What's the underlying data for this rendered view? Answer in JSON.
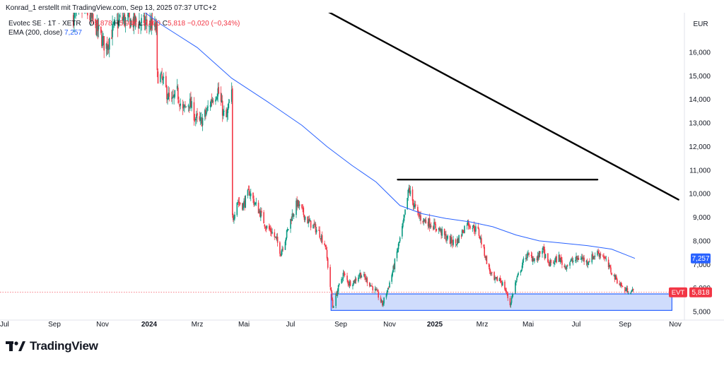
{
  "header": {
    "credit": "Konrad_1 erstellt mit TradingView.com, Sep 13, 2025 07:37 UTC+2",
    "symbol": "Evotec SE · 1T · XETR",
    "ohlc": {
      "o_label": "O",
      "o": "5,878",
      "h_label": "H",
      "h": "5,946",
      "l_label": "L",
      "l": "5,800",
      "c_label": "C",
      "c": "5,818",
      "change": "−0,020 (−0,34%)"
    },
    "indicator_name": "EMA (200, close)",
    "indicator_value": "7,257"
  },
  "currency": "EUR",
  "branding": "TradingView",
  "colors": {
    "up": "#089981",
    "down": "#f23645",
    "ema": "#2962ff",
    "zone_fill": "#c7d6fb",
    "zone_stroke": "#2962ff",
    "trendline": "#000000"
  },
  "chart_data": {
    "type": "candlestick",
    "symbol": "EVT",
    "interval": "1T",
    "x_axis_ticks": [
      "Jul",
      "Sep",
      "Nov",
      "2024",
      "Mrz",
      "Mai",
      "Jul",
      "Sep",
      "Nov",
      "2025",
      "Mrz",
      "Mai",
      "Jul",
      "Sep",
      "Nov"
    ],
    "y_axis_ticks": [
      "5,000",
      "6,000",
      "7,000",
      "8,000",
      "9,000",
      "10,000",
      "11,000",
      "12,000",
      "13,000",
      "14,000",
      "15,000",
      "16,000"
    ],
    "ylim": [
      4.6,
      17.2
    ],
    "last_price": {
      "symbol": "EVT",
      "value": 5.818,
      "label": "5,818"
    },
    "ema": {
      "name": "EMA (200, close)",
      "last_label": "7,257",
      "points": [
        [
          "2023-10-15",
          19.5
        ],
        [
          "2023-12-01",
          18.3
        ],
        [
          "2024-01-15",
          17.2
        ],
        [
          "2024-03-01",
          16.2
        ],
        [
          "2024-04-15",
          14.9
        ],
        [
          "2024-06-01",
          13.9
        ],
        [
          "2024-07-15",
          12.9
        ],
        [
          "2024-08-15",
          12.0
        ],
        [
          "2024-09-15",
          11.2
        ],
        [
          "2024-10-15",
          10.5
        ],
        [
          "2024-11-15",
          9.5
        ],
        [
          "2024-12-15",
          9.15
        ],
        [
          "2025-01-15",
          8.95
        ],
        [
          "2025-02-15",
          8.8
        ],
        [
          "2025-03-15",
          8.6
        ],
        [
          "2025-04-15",
          8.25
        ],
        [
          "2025-05-15",
          8.0
        ],
        [
          "2025-06-15",
          7.9
        ],
        [
          "2025-07-15",
          7.8
        ],
        [
          "2025-08-15",
          7.65
        ],
        [
          "2025-09-13",
          7.257
        ]
      ]
    },
    "closes": [
      [
        "2023-09-25",
        17.5
      ],
      [
        "2023-10-10",
        17.8
      ],
      [
        "2023-10-25",
        17.0
      ],
      [
        "2023-11-05",
        16.2
      ],
      [
        "2023-11-15",
        17.0
      ],
      [
        "2023-11-25",
        17.4
      ],
      [
        "2023-12-10",
        17.3
      ],
      [
        "2024-01-02",
        17.2
      ],
      [
        "2024-01-08",
        17.0
      ],
      [
        "2024-01-14",
        15.0
      ],
      [
        "2024-01-20",
        14.6
      ],
      [
        "2024-01-28",
        13.8
      ],
      [
        "2024-02-05",
        14.3
      ],
      [
        "2024-02-12",
        13.5
      ],
      [
        "2024-02-20",
        13.9
      ],
      [
        "2024-02-28",
        13.2
      ],
      [
        "2024-03-05",
        13.0
      ],
      [
        "2024-03-12",
        13.4
      ],
      [
        "2024-03-20",
        14.0
      ],
      [
        "2024-03-28",
        14.4
      ],
      [
        "2024-04-04",
        13.4
      ],
      [
        "2024-04-08",
        13.2
      ],
      [
        "2024-04-12",
        13.8
      ],
      [
        "2024-04-15",
        14.2
      ],
      [
        "2024-04-17",
        9.0
      ],
      [
        "2024-04-22",
        9.7
      ],
      [
        "2024-04-30",
        9.5
      ],
      [
        "2024-05-08",
        10.1
      ],
      [
        "2024-05-15",
        9.6
      ],
      [
        "2024-05-22",
        9.2
      ],
      [
        "2024-05-30",
        8.6
      ],
      [
        "2024-06-06",
        8.4
      ],
      [
        "2024-06-13",
        8.0
      ],
      [
        "2024-06-18",
        7.5
      ],
      [
        "2024-06-25",
        8.2
      ],
      [
        "2024-07-02",
        9.0
      ],
      [
        "2024-07-09",
        9.6
      ],
      [
        "2024-07-16",
        9.2
      ],
      [
        "2024-07-23",
        8.8
      ],
      [
        "2024-07-30",
        8.6
      ],
      [
        "2024-08-06",
        8.3
      ],
      [
        "2024-08-13",
        7.8
      ],
      [
        "2024-08-22",
        5.2
      ],
      [
        "2024-08-28",
        5.9
      ],
      [
        "2024-09-04",
        6.6
      ],
      [
        "2024-09-11",
        6.2
      ],
      [
        "2024-09-18",
        6.3
      ],
      [
        "2024-09-25",
        6.6
      ],
      [
        "2024-10-02",
        6.4
      ],
      [
        "2024-10-09",
        6.1
      ],
      [
        "2024-10-16",
        5.8
      ],
      [
        "2024-10-23",
        5.3
      ],
      [
        "2024-10-30",
        6.0
      ],
      [
        "2024-11-06",
        6.8
      ],
      [
        "2024-11-13",
        7.8
      ],
      [
        "2024-11-20",
        8.8
      ],
      [
        "2024-11-27",
        10.2
      ],
      [
        "2024-12-02",
        9.7
      ],
      [
        "2024-12-09",
        9.1
      ],
      [
        "2024-12-16",
        8.9
      ],
      [
        "2024-12-23",
        8.8
      ],
      [
        "2025-01-06",
        8.5
      ],
      [
        "2025-01-13",
        8.2
      ],
      [
        "2025-01-20",
        8.0
      ],
      [
        "2025-01-27",
        7.9
      ],
      [
        "2025-02-03",
        8.3
      ],
      [
        "2025-02-10",
        8.8
      ],
      [
        "2025-02-17",
        8.6
      ],
      [
        "2025-02-24",
        8.4
      ],
      [
        "2025-03-03",
        7.6
      ],
      [
        "2025-03-10",
        6.8
      ],
      [
        "2025-03-17",
        6.3
      ],
      [
        "2025-03-24",
        6.4
      ],
      [
        "2025-03-31",
        6.0
      ],
      [
        "2025-04-07",
        5.3
      ],
      [
        "2025-04-14",
        6.2
      ],
      [
        "2025-04-21",
        6.8
      ],
      [
        "2025-04-28",
        7.4
      ],
      [
        "2025-05-05",
        7.3
      ],
      [
        "2025-05-12",
        7.2
      ],
      [
        "2025-05-19",
        7.7
      ],
      [
        "2025-05-26",
        7.0
      ],
      [
        "2025-06-02",
        7.1
      ],
      [
        "2025-06-09",
        7.3
      ],
      [
        "2025-06-16",
        6.9
      ],
      [
        "2025-06-23",
        7.1
      ],
      [
        "2025-06-30",
        7.2
      ],
      [
        "2025-07-07",
        7.3
      ],
      [
        "2025-07-14",
        7.1
      ],
      [
        "2025-07-21",
        7.3
      ],
      [
        "2025-07-28",
        7.5
      ],
      [
        "2025-08-04",
        7.4
      ],
      [
        "2025-08-11",
        6.9
      ],
      [
        "2025-08-18",
        6.5
      ],
      [
        "2025-08-25",
        6.2
      ],
      [
        "2025-09-01",
        5.9
      ],
      [
        "2025-09-08",
        5.9
      ],
      [
        "2025-09-12",
        5.818
      ]
    ],
    "annotations": [
      {
        "kind": "descending-trendline",
        "from": [
          "2024-04-10",
          20.0
        ],
        "to": [
          "2025-11-05",
          9.75
        ]
      },
      {
        "kind": "horizontal-resistance",
        "from": [
          "2024-11-12",
          10.6
        ],
        "to": [
          "2025-07-28",
          10.6
        ]
      },
      {
        "kind": "support-zone",
        "from_date": "2024-08-20",
        "to_date": "2025-10-28",
        "y_low": 5.05,
        "y_high": 5.75
      }
    ]
  }
}
